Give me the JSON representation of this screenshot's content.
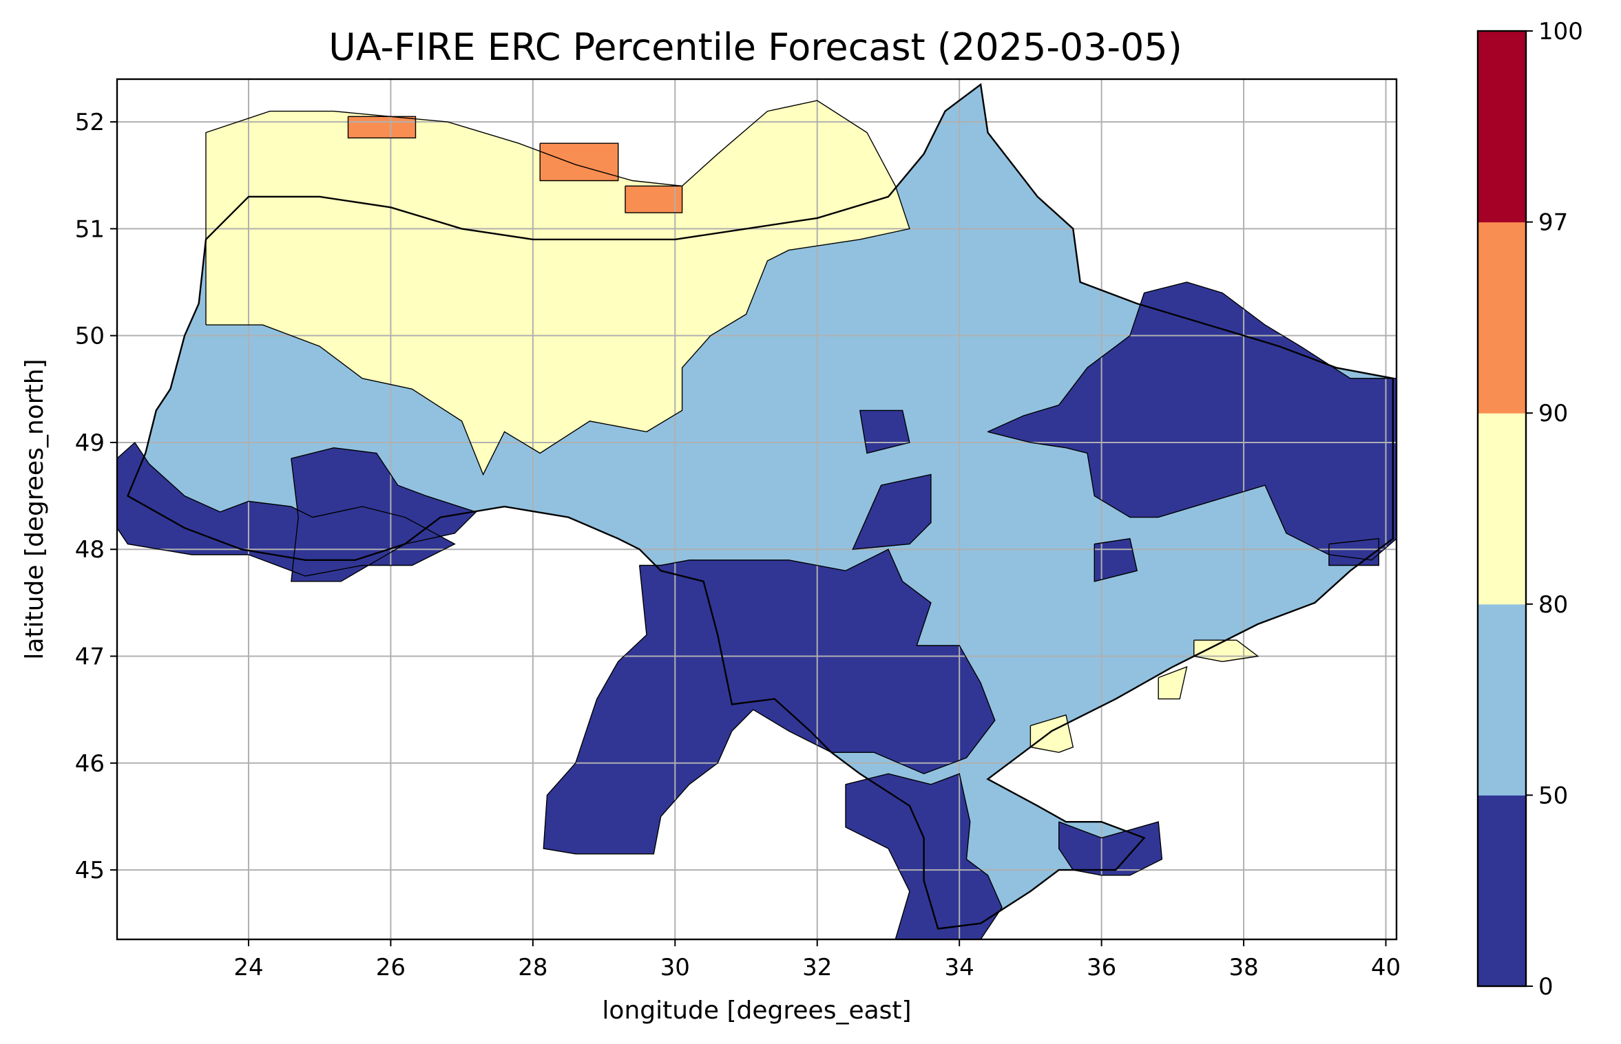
{
  "title": "UA-FIRE ERC Percentile Forecast (2025-03-05)",
  "xlabel": "longitude [degrees_east]",
  "ylabel": "latitude [degrees_north]",
  "x_ticks": [
    {
      "value": 24,
      "label": "24"
    },
    {
      "value": 26,
      "label": "26"
    },
    {
      "value": 28,
      "label": "28"
    },
    {
      "value": 30,
      "label": "30"
    },
    {
      "value": 32,
      "label": "32"
    },
    {
      "value": 34,
      "label": "34"
    },
    {
      "value": 36,
      "label": "36"
    },
    {
      "value": 38,
      "label": "38"
    },
    {
      "value": 40,
      "label": "40"
    }
  ],
  "y_ticks": [
    {
      "value": 45,
      "label": "45"
    },
    {
      "value": 46,
      "label": "46"
    },
    {
      "value": 47,
      "label": "47"
    },
    {
      "value": 48,
      "label": "48"
    },
    {
      "value": 49,
      "label": "49"
    },
    {
      "value": 50,
      "label": "50"
    },
    {
      "value": 51,
      "label": "51"
    },
    {
      "value": 52,
      "label": "52"
    }
  ],
  "colorbar": {
    "ticks": [
      {
        "value": 0,
        "label": "0"
      },
      {
        "value": 50,
        "label": "50"
      },
      {
        "value": 80,
        "label": "80"
      },
      {
        "value": 90,
        "label": "90"
      },
      {
        "value": 97,
        "label": "97"
      },
      {
        "value": 100,
        "label": "100"
      }
    ],
    "bins": [
      {
        "from": 0,
        "to": 50,
        "color": "#313695"
      },
      {
        "from": 50,
        "to": 80,
        "color": "#91c1df"
      },
      {
        "from": 80,
        "to": 90,
        "color": "#ffffbf"
      },
      {
        "from": 90,
        "to": 97,
        "color": "#f98e52"
      },
      {
        "from": 97,
        "to": 100,
        "color": "#a50026"
      }
    ]
  },
  "chart_data": {
    "type": "heatmap",
    "title": "UA-FIRE ERC Percentile Forecast (2025-03-05)",
    "xlabel": "longitude [degrees_east]",
    "ylabel": "latitude [degrees_north]",
    "xlim": [
      22.15,
      40.15
    ],
    "ylim": [
      44.35,
      52.4
    ],
    "grid": true,
    "colorbar_bounds": [
      0,
      50,
      80,
      90,
      97,
      100
    ],
    "regions": [
      {
        "category": "50-80",
        "polygon": [
          [
            22.55,
            48.9
          ],
          [
            22.7,
            49.3
          ],
          [
            22.9,
            49.5
          ],
          [
            23.1,
            50.0
          ],
          [
            23.3,
            50.3
          ],
          [
            23.4,
            50.9
          ],
          [
            24.0,
            51.3
          ],
          [
            25.0,
            51.3
          ],
          [
            26.0,
            51.2
          ],
          [
            27.0,
            51.0
          ],
          [
            28.0,
            50.9
          ],
          [
            29.0,
            50.9
          ],
          [
            30.0,
            50.9
          ],
          [
            31.0,
            51.0
          ],
          [
            32.0,
            51.1
          ],
          [
            33.0,
            51.3
          ],
          [
            33.5,
            51.7
          ],
          [
            33.8,
            52.1
          ],
          [
            34.3,
            52.35
          ],
          [
            34.4,
            51.9
          ],
          [
            35.1,
            51.3
          ],
          [
            35.6,
            51.0
          ],
          [
            35.7,
            50.5
          ],
          [
            36.5,
            50.3
          ],
          [
            37.5,
            50.1
          ],
          [
            38.5,
            49.9
          ],
          [
            39.3,
            49.7
          ],
          [
            40.1,
            49.6
          ],
          [
            40.1,
            48.1
          ],
          [
            39.5,
            47.8
          ],
          [
            39.0,
            47.5
          ],
          [
            38.2,
            47.3
          ],
          [
            37.6,
            47.1
          ],
          [
            37.0,
            46.9
          ],
          [
            36.2,
            46.6
          ],
          [
            35.3,
            46.3
          ],
          [
            34.9,
            46.1
          ],
          [
            34.4,
            45.85
          ],
          [
            35.1,
            45.6
          ],
          [
            35.5,
            45.45
          ],
          [
            36.0,
            45.45
          ],
          [
            36.6,
            45.3
          ],
          [
            36.2,
            45.0
          ],
          [
            35.4,
            45.0
          ],
          [
            35.0,
            44.8
          ],
          [
            34.3,
            44.5
          ],
          [
            33.7,
            44.45
          ],
          [
            33.5,
            44.9
          ],
          [
            33.5,
            45.3
          ],
          [
            33.3,
            45.6
          ],
          [
            32.6,
            45.9
          ],
          [
            32.2,
            46.1
          ],
          [
            31.9,
            46.3
          ],
          [
            31.4,
            46.6
          ],
          [
            30.8,
            46.55
          ],
          [
            30.6,
            47.2
          ],
          [
            30.4,
            47.7
          ],
          [
            29.8,
            47.8
          ],
          [
            29.5,
            48.0
          ],
          [
            29.2,
            48.1
          ],
          [
            28.5,
            48.3
          ],
          [
            27.6,
            48.4
          ],
          [
            26.7,
            48.3
          ],
          [
            26.2,
            48.05
          ],
          [
            25.5,
            47.9
          ],
          [
            24.8,
            47.9
          ],
          [
            23.9,
            48.0
          ],
          [
            23.1,
            48.2
          ],
          [
            22.3,
            48.5
          ],
          [
            22.55,
            48.9
          ]
        ]
      },
      {
        "category": "80-90",
        "polygon": [
          [
            23.4,
            50.1
          ],
          [
            23.4,
            51.9
          ],
          [
            24.3,
            52.1
          ],
          [
            25.2,
            52.1
          ],
          [
            26.8,
            52.0
          ],
          [
            27.8,
            51.8
          ],
          [
            28.6,
            51.6
          ],
          [
            29.4,
            51.45
          ],
          [
            30.1,
            51.4
          ],
          [
            30.6,
            51.7
          ],
          [
            31.3,
            52.1
          ],
          [
            32.0,
            52.2
          ],
          [
            32.7,
            51.9
          ],
          [
            33.1,
            51.4
          ],
          [
            33.3,
            51.0
          ],
          [
            32.6,
            50.9
          ],
          [
            31.6,
            50.8
          ],
          [
            31.3,
            50.7
          ],
          [
            31.0,
            50.2
          ],
          [
            30.5,
            50.0
          ],
          [
            30.1,
            49.7
          ],
          [
            30.1,
            49.3
          ],
          [
            29.6,
            49.1
          ],
          [
            28.8,
            49.2
          ],
          [
            28.1,
            48.9
          ],
          [
            27.6,
            49.1
          ],
          [
            27.3,
            48.7
          ],
          [
            27.0,
            49.2
          ],
          [
            26.3,
            49.5
          ],
          [
            25.6,
            49.6
          ],
          [
            25.0,
            49.9
          ],
          [
            24.2,
            50.1
          ],
          [
            23.4,
            50.1
          ]
        ]
      },
      {
        "category": "<50",
        "polygon": [
          [
            22.15,
            48.85
          ],
          [
            22.4,
            49.0
          ],
          [
            22.6,
            48.8
          ],
          [
            23.1,
            48.5
          ],
          [
            23.6,
            48.35
          ],
          [
            24.0,
            48.45
          ],
          [
            24.6,
            48.4
          ],
          [
            24.9,
            48.3
          ],
          [
            25.6,
            48.4
          ],
          [
            26.2,
            48.3
          ],
          [
            26.9,
            48.05
          ],
          [
            26.3,
            47.85
          ],
          [
            25.6,
            47.85
          ],
          [
            24.8,
            47.75
          ],
          [
            24.0,
            47.95
          ],
          [
            23.2,
            47.95
          ],
          [
            22.3,
            48.05
          ],
          [
            22.15,
            48.2
          ],
          [
            22.15,
            48.85
          ]
        ]
      },
      {
        "category": "<50",
        "polygon": [
          [
            24.6,
            48.85
          ],
          [
            25.2,
            48.95
          ],
          [
            25.8,
            48.9
          ],
          [
            26.1,
            48.6
          ],
          [
            26.5,
            48.5
          ],
          [
            27.2,
            48.35
          ],
          [
            26.9,
            48.15
          ],
          [
            26.2,
            48.05
          ],
          [
            25.3,
            47.7
          ],
          [
            24.6,
            47.7
          ],
          [
            24.7,
            48.3
          ],
          [
            24.6,
            48.85
          ]
        ]
      },
      {
        "category": "<50",
        "polygon": [
          [
            29.5,
            47.85
          ],
          [
            29.8,
            47.85
          ],
          [
            30.2,
            47.9
          ],
          [
            31.0,
            47.9
          ],
          [
            31.6,
            47.9
          ],
          [
            32.4,
            47.8
          ],
          [
            33.0,
            48.0
          ],
          [
            33.2,
            47.7
          ],
          [
            33.6,
            47.5
          ],
          [
            33.4,
            47.1
          ],
          [
            34.0,
            47.1
          ],
          [
            34.3,
            46.75
          ],
          [
            34.5,
            46.4
          ],
          [
            34.1,
            46.05
          ],
          [
            33.5,
            45.9
          ],
          [
            32.8,
            46.1
          ],
          [
            32.2,
            46.1
          ],
          [
            31.6,
            46.3
          ],
          [
            31.1,
            46.5
          ],
          [
            30.8,
            46.3
          ],
          [
            30.6,
            46.0
          ],
          [
            30.2,
            45.8
          ],
          [
            29.8,
            45.5
          ],
          [
            29.7,
            45.15
          ],
          [
            28.6,
            45.15
          ],
          [
            28.15,
            45.2
          ],
          [
            28.2,
            45.7
          ],
          [
            28.6,
            46.0
          ],
          [
            28.8,
            46.4
          ],
          [
            28.9,
            46.6
          ],
          [
            29.2,
            46.95
          ],
          [
            29.6,
            47.2
          ],
          [
            29.5,
            47.85
          ]
        ]
      },
      {
        "category": "<50",
        "polygon": [
          [
            32.4,
            45.8
          ],
          [
            33.0,
            45.9
          ],
          [
            33.6,
            45.8
          ],
          [
            34.0,
            45.9
          ],
          [
            34.15,
            45.45
          ],
          [
            34.1,
            45.1
          ],
          [
            34.4,
            44.95
          ],
          [
            34.6,
            44.65
          ],
          [
            34.3,
            44.35
          ],
          [
            33.1,
            44.35
          ],
          [
            33.3,
            44.8
          ],
          [
            33.0,
            45.2
          ],
          [
            32.4,
            45.4
          ],
          [
            32.4,
            45.8
          ]
        ]
      },
      {
        "category": "<50",
        "polygon": [
          [
            35.4,
            45.45
          ],
          [
            36.0,
            45.3
          ],
          [
            36.8,
            45.45
          ],
          [
            36.85,
            45.1
          ],
          [
            36.4,
            44.95
          ],
          [
            36.0,
            44.95
          ],
          [
            35.6,
            45.0
          ],
          [
            35.4,
            45.2
          ],
          [
            35.4,
            45.45
          ]
        ]
      },
      {
        "category": "<50",
        "polygon": [
          [
            34.4,
            49.1
          ],
          [
            34.9,
            49.25
          ],
          [
            35.4,
            49.35
          ],
          [
            35.8,
            49.7
          ],
          [
            36.4,
            50.0
          ],
          [
            36.6,
            50.4
          ],
          [
            37.2,
            50.5
          ],
          [
            37.7,
            50.4
          ],
          [
            38.3,
            50.1
          ],
          [
            38.8,
            49.9
          ],
          [
            39.5,
            49.6
          ],
          [
            40.15,
            49.6
          ],
          [
            40.15,
            48.1
          ],
          [
            39.8,
            47.9
          ],
          [
            39.2,
            47.95
          ],
          [
            38.6,
            48.15
          ],
          [
            38.3,
            48.6
          ],
          [
            37.8,
            48.5
          ],
          [
            37.3,
            48.4
          ],
          [
            36.8,
            48.3
          ],
          [
            36.4,
            48.3
          ],
          [
            35.9,
            48.5
          ],
          [
            35.8,
            48.9
          ],
          [
            35.5,
            48.95
          ],
          [
            35.0,
            49.0
          ],
          [
            34.4,
            49.1
          ]
        ]
      },
      {
        "category": "<50",
        "polygon": [
          [
            32.9,
            48.6
          ],
          [
            33.6,
            48.7
          ],
          [
            33.6,
            48.25
          ],
          [
            33.3,
            48.05
          ],
          [
            32.5,
            48.0
          ],
          [
            32.9,
            48.6
          ]
        ]
      },
      {
        "category": "<50",
        "polygon": [
          [
            32.6,
            49.3
          ],
          [
            33.2,
            49.3
          ],
          [
            33.3,
            49.0
          ],
          [
            32.7,
            48.9
          ],
          [
            32.6,
            49.3
          ]
        ]
      },
      {
        "category": "<50",
        "polygon": [
          [
            35.9,
            48.05
          ],
          [
            36.4,
            48.1
          ],
          [
            36.5,
            47.8
          ],
          [
            35.9,
            47.7
          ],
          [
            35.9,
            48.05
          ]
        ]
      },
      {
        "category": "<50",
        "polygon": [
          [
            39.2,
            48.05
          ],
          [
            39.9,
            48.1
          ],
          [
            39.9,
            47.85
          ],
          [
            39.2,
            47.85
          ],
          [
            39.2,
            48.05
          ]
        ]
      },
      {
        "category": "80-90",
        "polygon": [
          [
            37.3,
            47.15
          ],
          [
            37.9,
            47.15
          ],
          [
            38.2,
            47.0
          ],
          [
            37.7,
            46.95
          ],
          [
            37.3,
            47.0
          ],
          [
            37.3,
            47.15
          ]
        ]
      },
      {
        "category": "80-90",
        "polygon": [
          [
            35.0,
            46.35
          ],
          [
            35.5,
            46.45
          ],
          [
            35.6,
            46.15
          ],
          [
            35.4,
            46.1
          ],
          [
            35.0,
            46.15
          ],
          [
            35.0,
            46.35
          ]
        ]
      },
      {
        "category": "80-90",
        "polygon": [
          [
            36.8,
            46.8
          ],
          [
            37.2,
            46.9
          ],
          [
            37.1,
            46.6
          ],
          [
            36.8,
            46.6
          ],
          [
            36.8,
            46.8
          ]
        ]
      },
      {
        "category": "90-97",
        "polygon": [
          [
            25.4,
            52.05
          ],
          [
            26.35,
            52.05
          ],
          [
            26.35,
            51.85
          ],
          [
            25.4,
            51.85
          ],
          [
            25.4,
            52.05
          ]
        ]
      },
      {
        "category": "90-97",
        "polygon": [
          [
            28.1,
            51.8
          ],
          [
            29.2,
            51.8
          ],
          [
            29.2,
            51.45
          ],
          [
            28.1,
            51.45
          ],
          [
            28.1,
            51.8
          ]
        ]
      },
      {
        "category": "90-97",
        "polygon": [
          [
            29.3,
            51.4
          ],
          [
            30.1,
            51.4
          ],
          [
            30.1,
            51.15
          ],
          [
            29.3,
            51.15
          ],
          [
            29.3,
            51.4
          ]
        ]
      }
    ]
  }
}
